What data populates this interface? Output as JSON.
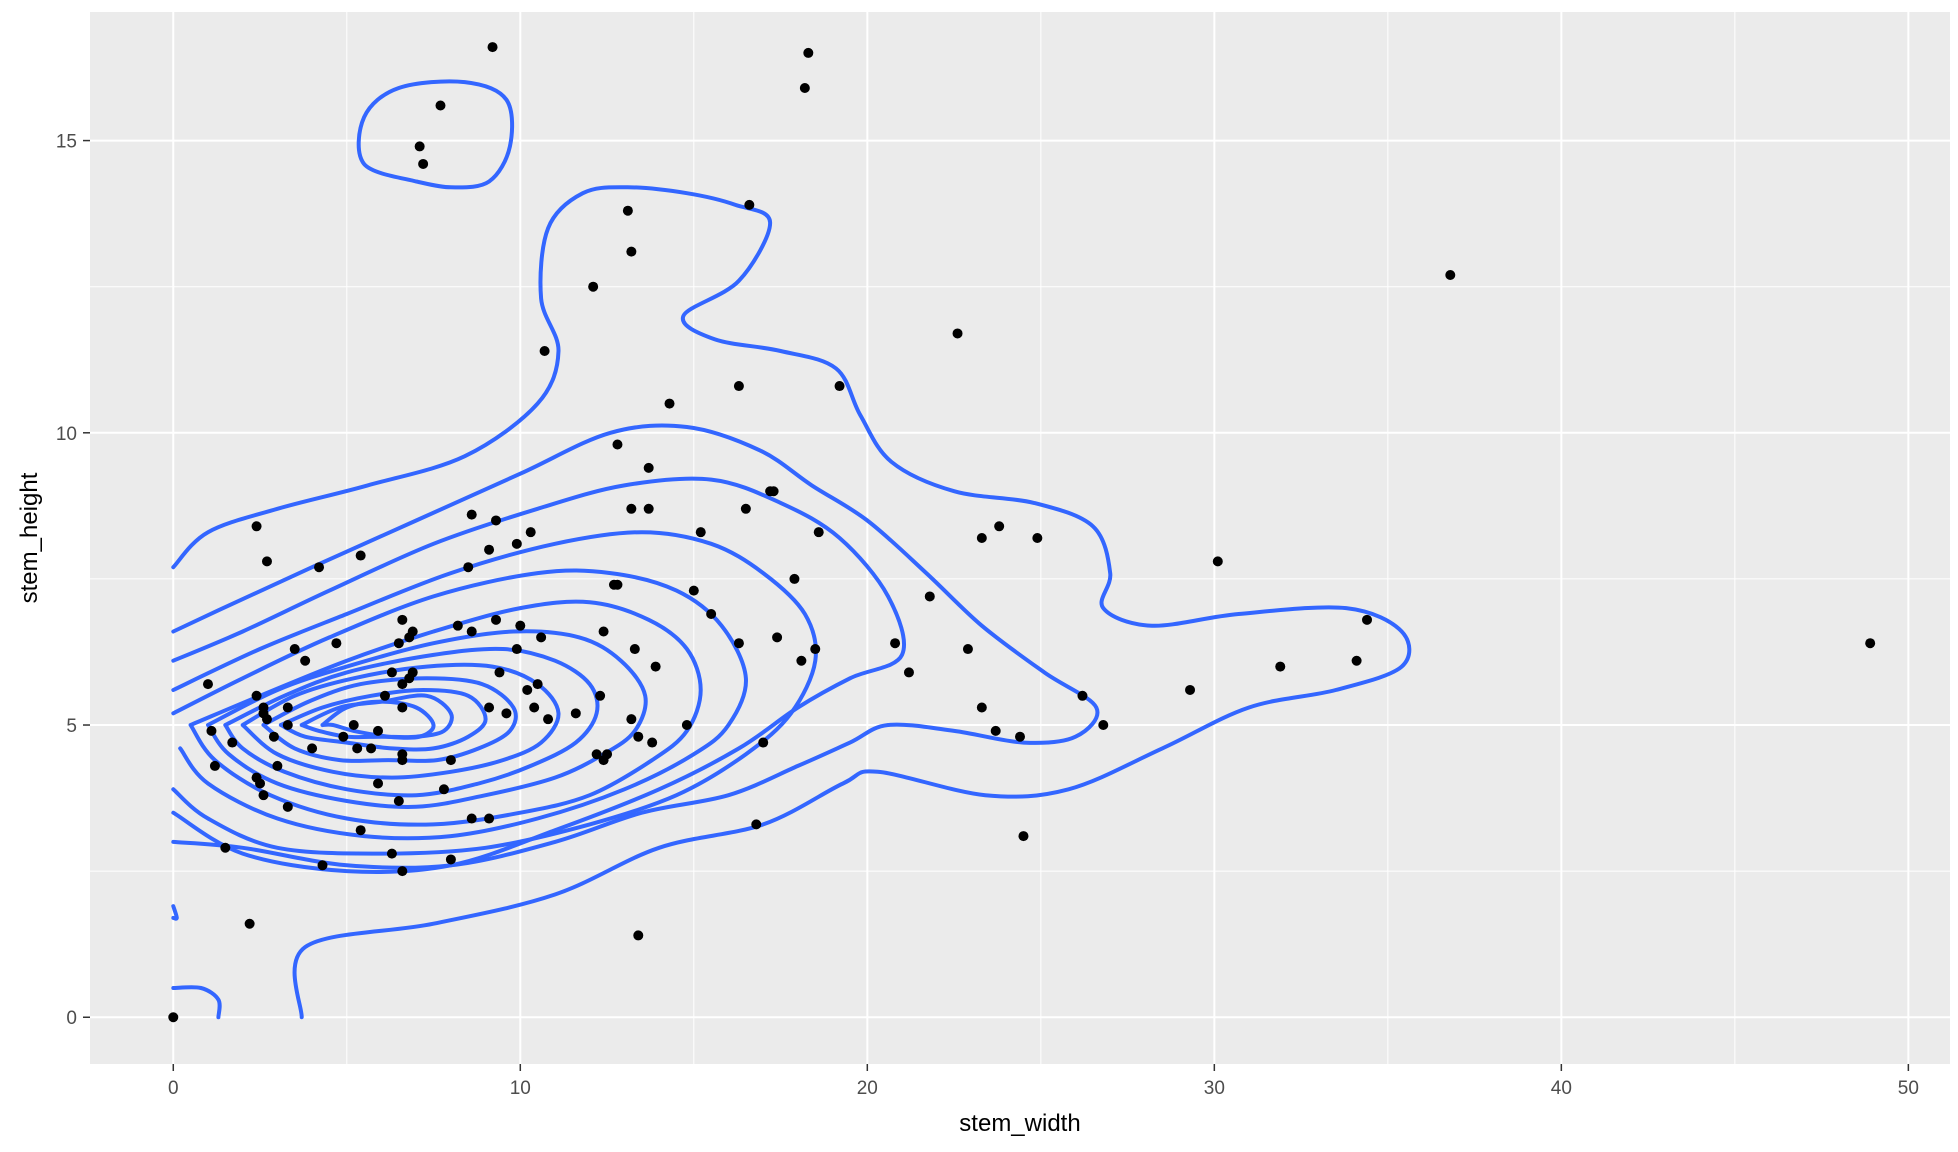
{
  "chart_data": {
    "type": "scatter",
    "title": "",
    "xlabel": "stem_width",
    "ylabel": "stem_height",
    "xlim": [
      -2.4,
      51.2
    ],
    "ylim": [
      -0.8,
      17.2
    ],
    "xticks": [
      0,
      10,
      20,
      30,
      40,
      50
    ],
    "yticks": [
      0,
      5,
      10,
      15
    ],
    "grid": true,
    "legend": "none",
    "colors": {
      "panel": "#ebebeb",
      "grid": "#ffffff",
      "points": "#000000",
      "contours": "#3366ff",
      "ticks": "#333333"
    },
    "points": [
      [
        9.2,
        16.6
      ],
      [
        18.3,
        16.5
      ],
      [
        18.2,
        15.9
      ],
      [
        7.7,
        15.6
      ],
      [
        7.1,
        14.9
      ],
      [
        7.2,
        14.6
      ],
      [
        16.6,
        13.9
      ],
      [
        13.1,
        13.8
      ],
      [
        13.2,
        13.1
      ],
      [
        12.1,
        12.5
      ],
      [
        36.8,
        12.7
      ],
      [
        22.6,
        11.7
      ],
      [
        10.7,
        11.4
      ],
      [
        16.3,
        10.8
      ],
      [
        19.2,
        10.8
      ],
      [
        14.3,
        10.5
      ],
      [
        12.8,
        9.8
      ],
      [
        13.7,
        9.4
      ],
      [
        17.2,
        9.0
      ],
      [
        17.3,
        9.0
      ],
      [
        13.2,
        8.7
      ],
      [
        13.7,
        8.7
      ],
      [
        16.5,
        8.7
      ],
      [
        8.6,
        8.6
      ],
      [
        9.3,
        8.5
      ],
      [
        23.8,
        8.4
      ],
      [
        2.4,
        8.4
      ],
      [
        23.3,
        8.2
      ],
      [
        24.9,
        8.2
      ],
      [
        18.6,
        8.3
      ],
      [
        15.2,
        8.3
      ],
      [
        10.3,
        8.3
      ],
      [
        9.9,
        8.1
      ],
      [
        9.1,
        8.0
      ],
      [
        5.4,
        7.9
      ],
      [
        2.7,
        7.8
      ],
      [
        30.1,
        7.8
      ],
      [
        4.2,
        7.7
      ],
      [
        8.5,
        7.7
      ],
      [
        17.9,
        7.5
      ],
      [
        12.7,
        7.4
      ],
      [
        12.8,
        7.4
      ],
      [
        21.8,
        7.2
      ],
      [
        15.0,
        7.3
      ],
      [
        15.5,
        6.9
      ],
      [
        9.3,
        6.8
      ],
      [
        6.6,
        6.8
      ],
      [
        8.2,
        6.7
      ],
      [
        34.4,
        6.8
      ],
      [
        10.0,
        6.7
      ],
      [
        8.6,
        6.6
      ],
      [
        12.4,
        6.6
      ],
      [
        6.9,
        6.6
      ],
      [
        6.8,
        6.5
      ],
      [
        10.6,
        6.5
      ],
      [
        17.4,
        6.5
      ],
      [
        16.3,
        6.4
      ],
      [
        20.8,
        6.4
      ],
      [
        48.9,
        6.4
      ],
      [
        4.7,
        6.4
      ],
      [
        3.5,
        6.3
      ],
      [
        9.9,
        6.3
      ],
      [
        13.3,
        6.3
      ],
      [
        22.9,
        6.3
      ],
      [
        6.5,
        6.4
      ],
      [
        18.5,
        6.3
      ],
      [
        18.1,
        6.1
      ],
      [
        3.8,
        6.1
      ],
      [
        13.9,
        6.0
      ],
      [
        34.1,
        6.1
      ],
      [
        31.9,
        6.0
      ],
      [
        21.2,
        5.9
      ],
      [
        9.4,
        5.9
      ],
      [
        6.3,
        5.9
      ],
      [
        6.9,
        5.9
      ],
      [
        6.8,
        5.8
      ],
      [
        6.6,
        5.7
      ],
      [
        10.5,
        5.7
      ],
      [
        10.2,
        5.6
      ],
      [
        1.0,
        5.7
      ],
      [
        29.3,
        5.6
      ],
      [
        26.2,
        5.5
      ],
      [
        12.3,
        5.5
      ],
      [
        6.1,
        5.5
      ],
      [
        2.4,
        5.5
      ],
      [
        2.6,
        5.3
      ],
      [
        10.4,
        5.3
      ],
      [
        9.1,
        5.3
      ],
      [
        6.6,
        5.3
      ],
      [
        3.3,
        5.3
      ],
      [
        23.3,
        5.3
      ],
      [
        2.6,
        5.2
      ],
      [
        9.6,
        5.2
      ],
      [
        2.7,
        5.1
      ],
      [
        11.6,
        5.2
      ],
      [
        10.8,
        5.1
      ],
      [
        13.2,
        5.1
      ],
      [
        14.8,
        5.0
      ],
      [
        26.8,
        5.0
      ],
      [
        5.2,
        5.0
      ],
      [
        3.3,
        5.0
      ],
      [
        23.7,
        4.9
      ],
      [
        5.9,
        4.9
      ],
      [
        1.1,
        4.9
      ],
      [
        2.9,
        4.8
      ],
      [
        4.9,
        4.8
      ],
      [
        24.4,
        4.8
      ],
      [
        13.4,
        4.8
      ],
      [
        1.7,
        4.7
      ],
      [
        13.8,
        4.7
      ],
      [
        17.0,
        4.7
      ],
      [
        5.3,
        4.6
      ],
      [
        5.7,
        4.6
      ],
      [
        4.0,
        4.6
      ],
      [
        12.2,
        4.5
      ],
      [
        12.5,
        4.5
      ],
      [
        12.4,
        4.4
      ],
      [
        6.6,
        4.5
      ],
      [
        8.0,
        4.4
      ],
      [
        6.6,
        4.4
      ],
      [
        3.0,
        4.3
      ],
      [
        1.2,
        4.3
      ],
      [
        2.4,
        4.1
      ],
      [
        2.5,
        4.0
      ],
      [
        5.9,
        4.0
      ],
      [
        7.8,
        3.9
      ],
      [
        6.5,
        3.7
      ],
      [
        2.6,
        3.8
      ],
      [
        3.3,
        3.6
      ],
      [
        8.6,
        3.4
      ],
      [
        9.1,
        3.4
      ],
      [
        16.8,
        3.3
      ],
      [
        5.4,
        3.2
      ],
      [
        24.5,
        3.1
      ],
      [
        1.5,
        2.9
      ],
      [
        8.0,
        2.7
      ],
      [
        6.3,
        2.8
      ],
      [
        4.3,
        2.6
      ],
      [
        6.6,
        2.5
      ],
      [
        2.2,
        1.6
      ],
      [
        13.4,
        1.4
      ],
      [
        0.0,
        0.0
      ]
    ],
    "contours": [
      [
        [
          7.0,
          14.3
        ],
        [
          5.5,
          14.6
        ],
        [
          5.5,
          15.4
        ],
        [
          6.5,
          15.9
        ],
        [
          8.4,
          16.0
        ],
        [
          9.6,
          15.7
        ],
        [
          9.7,
          14.9
        ],
        [
          9.1,
          14.3
        ],
        [
          8.0,
          14.2
        ],
        [
          7.0,
          14.3
        ]
      ],
      [
        [
          0.0,
          7.7
        ],
        [
          1.0,
          8.3
        ],
        [
          3.0,
          8.7
        ],
        [
          5.6,
          9.1
        ],
        [
          8.4,
          9.6
        ],
        [
          10.5,
          10.5
        ],
        [
          11.1,
          11.4
        ],
        [
          10.6,
          12.3
        ],
        [
          10.8,
          13.5
        ],
        [
          11.8,
          14.1
        ],
        [
          13.1,
          14.2
        ],
        [
          14.8,
          14.1
        ],
        [
          16.2,
          13.9
        ],
        [
          17.2,
          13.6
        ],
        [
          16.3,
          12.6
        ],
        [
          14.7,
          12.0
        ],
        [
          15.6,
          11.6
        ],
        [
          17.5,
          11.4
        ],
        [
          19.1,
          11.1
        ],
        [
          19.8,
          10.3
        ],
        [
          20.7,
          9.5
        ],
        [
          22.5,
          9.0
        ],
        [
          24.8,
          8.8
        ],
        [
          26.5,
          8.4
        ],
        [
          27.0,
          7.6
        ],
        [
          26.8,
          7.0
        ],
        [
          28.2,
          6.7
        ],
        [
          30.7,
          6.9
        ],
        [
          33.8,
          7.0
        ],
        [
          35.4,
          6.6
        ],
        [
          35.4,
          6.0
        ],
        [
          33.5,
          5.6
        ],
        [
          31.0,
          5.3
        ],
        [
          28.5,
          4.6
        ],
        [
          25.8,
          3.9
        ],
        [
          23.4,
          3.8
        ],
        [
          20.3,
          4.2
        ],
        [
          19.3,
          4.0
        ],
        [
          17.0,
          3.3
        ],
        [
          14.0,
          2.9
        ],
        [
          11.0,
          2.1
        ],
        [
          7.5,
          1.6
        ],
        [
          3.8,
          1.2
        ],
        [
          3.7,
          0.0
        ]
      ],
      [
        [
          0.0,
          6.6
        ],
        [
          1.8,
          7.1
        ],
        [
          4.0,
          7.7
        ],
        [
          7.0,
          8.5
        ],
        [
          10.0,
          9.3
        ],
        [
          12.6,
          10.0
        ],
        [
          14.8,
          10.1
        ],
        [
          16.9,
          9.7
        ],
        [
          18.4,
          9.1
        ],
        [
          20.0,
          8.5
        ],
        [
          21.7,
          7.6
        ],
        [
          23.3,
          6.7
        ],
        [
          25.1,
          5.9
        ],
        [
          26.6,
          5.3
        ],
        [
          26.0,
          4.8
        ],
        [
          24.5,
          4.7
        ],
        [
          22.5,
          4.9
        ],
        [
          20.6,
          5.0
        ],
        [
          19.5,
          4.7
        ],
        [
          18.0,
          4.3
        ],
        [
          16.0,
          3.8
        ],
        [
          13.5,
          3.5
        ],
        [
          11.0,
          3.0
        ],
        [
          8.0,
          2.6
        ],
        [
          5.0,
          2.6
        ],
        [
          2.0,
          2.9
        ],
        [
          0.0,
          3.0
        ]
      ],
      [
        [
          0.0,
          6.1
        ],
        [
          2.0,
          6.6
        ],
        [
          4.5,
          7.3
        ],
        [
          7.5,
          8.1
        ],
        [
          10.5,
          8.7
        ],
        [
          13.0,
          9.1
        ],
        [
          15.5,
          9.2
        ],
        [
          17.5,
          8.8
        ],
        [
          19.2,
          8.2
        ],
        [
          20.6,
          7.2
        ],
        [
          21.0,
          6.2
        ],
        [
          19.5,
          5.8
        ],
        [
          18.0,
          5.3
        ],
        [
          16.3,
          4.6
        ],
        [
          14.0,
          3.9
        ],
        [
          11.0,
          3.2
        ],
        [
          8.0,
          2.6
        ],
        [
          5.0,
          2.5
        ],
        [
          2.0,
          2.8
        ],
        [
          0.0,
          3.5
        ]
      ],
      [
        [
          0.0,
          5.6
        ],
        [
          2.5,
          6.3
        ],
        [
          5.0,
          6.9
        ],
        [
          8.0,
          7.6
        ],
        [
          11.0,
          8.1
        ],
        [
          13.5,
          8.3
        ],
        [
          15.5,
          8.1
        ],
        [
          17.0,
          7.6
        ],
        [
          18.2,
          6.9
        ],
        [
          18.5,
          6.1
        ],
        [
          17.8,
          5.2
        ],
        [
          16.5,
          4.5
        ],
        [
          14.5,
          3.8
        ],
        [
          12.0,
          3.3
        ],
        [
          9.0,
          2.9
        ],
        [
          6.0,
          2.8
        ],
        [
          3.0,
          2.9
        ],
        [
          1.0,
          3.4
        ],
        [
          0.0,
          3.9
        ]
      ],
      [
        [
          0.0,
          5.2
        ],
        [
          2.0,
          5.8
        ],
        [
          4.5,
          6.5
        ],
        [
          7.5,
          7.2
        ],
        [
          10.5,
          7.6
        ],
        [
          12.6,
          7.6
        ],
        [
          14.5,
          7.3
        ],
        [
          15.8,
          6.7
        ],
        [
          16.5,
          5.8
        ],
        [
          16.0,
          5.0
        ],
        [
          15.0,
          4.5
        ],
        [
          13.0,
          3.9
        ],
        [
          10.5,
          3.4
        ],
        [
          8.0,
          3.1
        ],
        [
          5.5,
          3.1
        ],
        [
          3.0,
          3.4
        ],
        [
          1.0,
          4.0
        ],
        [
          0.2,
          4.6
        ]
      ],
      [
        [
          0.5,
          5.0
        ],
        [
          2.5,
          5.5
        ],
        [
          5.0,
          6.1
        ],
        [
          7.5,
          6.6
        ],
        [
          10.0,
          7.0
        ],
        [
          12.0,
          7.1
        ],
        [
          13.7,
          6.8
        ],
        [
          14.8,
          6.3
        ],
        [
          15.2,
          5.6
        ],
        [
          14.8,
          4.9
        ],
        [
          13.8,
          4.4
        ],
        [
          12.0,
          3.8
        ],
        [
          10.0,
          3.5
        ],
        [
          7.5,
          3.3
        ],
        [
          5.0,
          3.4
        ],
        [
          2.8,
          3.8
        ],
        [
          1.2,
          4.4
        ],
        [
          0.5,
          5.0
        ]
      ],
      [
        [
          1.0,
          5.0
        ],
        [
          3.0,
          5.6
        ],
        [
          5.0,
          6.0
        ],
        [
          7.5,
          6.4
        ],
        [
          9.8,
          6.6
        ],
        [
          11.7,
          6.5
        ],
        [
          12.9,
          6.1
        ],
        [
          13.6,
          5.5
        ],
        [
          13.3,
          4.9
        ],
        [
          12.4,
          4.5
        ],
        [
          11.0,
          4.1
        ],
        [
          9.0,
          3.8
        ],
        [
          7.0,
          3.6
        ],
        [
          5.0,
          3.7
        ],
        [
          3.0,
          4.0
        ],
        [
          1.6,
          4.5
        ],
        [
          1.0,
          5.0
        ]
      ],
      [
        [
          1.5,
          5.0
        ],
        [
          3.2,
          5.5
        ],
        [
          5.0,
          5.9
        ],
        [
          7.5,
          6.2
        ],
        [
          9.5,
          6.3
        ],
        [
          11.0,
          6.1
        ],
        [
          12.0,
          5.7
        ],
        [
          12.2,
          5.2
        ],
        [
          11.6,
          4.7
        ],
        [
          10.3,
          4.3
        ],
        [
          8.8,
          4.0
        ],
        [
          7.0,
          3.8
        ],
        [
          5.0,
          3.9
        ],
        [
          3.2,
          4.2
        ],
        [
          2.0,
          4.6
        ],
        [
          1.5,
          5.0
        ]
      ],
      [
        [
          2.0,
          5.0
        ],
        [
          3.5,
          5.5
        ],
        [
          5.2,
          5.8
        ],
        [
          7.3,
          6.0
        ],
        [
          9.2,
          6.0
        ],
        [
          10.5,
          5.7
        ],
        [
          11.1,
          5.2
        ],
        [
          10.6,
          4.7
        ],
        [
          9.5,
          4.4
        ],
        [
          8.0,
          4.2
        ],
        [
          6.3,
          4.1
        ],
        [
          4.6,
          4.2
        ],
        [
          3.0,
          4.5
        ],
        [
          2.0,
          5.0
        ]
      ],
      [
        [
          2.6,
          5.0
        ],
        [
          3.9,
          5.4
        ],
        [
          5.4,
          5.7
        ],
        [
          7.3,
          5.8
        ],
        [
          8.9,
          5.7
        ],
        [
          9.8,
          5.3
        ],
        [
          9.7,
          4.9
        ],
        [
          8.8,
          4.6
        ],
        [
          7.6,
          4.4
        ],
        [
          6.2,
          4.4
        ],
        [
          4.8,
          4.4
        ],
        [
          3.5,
          4.6
        ],
        [
          2.6,
          5.0
        ]
      ],
      [
        [
          3.1,
          5.0
        ],
        [
          4.3,
          5.3
        ],
        [
          5.7,
          5.5
        ],
        [
          7.2,
          5.6
        ],
        [
          8.5,
          5.5
        ],
        [
          9.0,
          5.1
        ],
        [
          8.5,
          4.8
        ],
        [
          7.5,
          4.6
        ],
        [
          6.3,
          4.6
        ],
        [
          5.0,
          4.7
        ],
        [
          3.8,
          4.8
        ],
        [
          3.1,
          5.0
        ]
      ],
      [
        [
          3.7,
          5.0
        ],
        [
          4.8,
          5.3
        ],
        [
          6.0,
          5.4
        ],
        [
          7.3,
          5.5
        ],
        [
          8.0,
          5.2
        ],
        [
          7.8,
          4.9
        ],
        [
          7.0,
          4.8
        ],
        [
          6.0,
          4.8
        ],
        [
          5.0,
          4.8
        ],
        [
          4.2,
          4.9
        ],
        [
          3.7,
          5.0
        ]
      ],
      [
        [
          4.3,
          5.0
        ],
        [
          5.0,
          5.3
        ],
        [
          6.0,
          5.4
        ],
        [
          7.0,
          5.3
        ],
        [
          7.5,
          5.0
        ],
        [
          7.1,
          4.8
        ],
        [
          6.2,
          4.8
        ],
        [
          5.2,
          4.9
        ],
        [
          4.6,
          5.0
        ],
        [
          4.3,
          5.0
        ]
      ],
      [
        [
          0.0,
          1.9
        ],
        [
          0.1,
          1.7
        ],
        [
          0.0,
          1.7
        ]
      ],
      [
        [
          0.0,
          0.5
        ],
        [
          0.8,
          0.5
        ],
        [
          1.3,
          0.3
        ],
        [
          1.3,
          0.0
        ]
      ]
    ]
  }
}
